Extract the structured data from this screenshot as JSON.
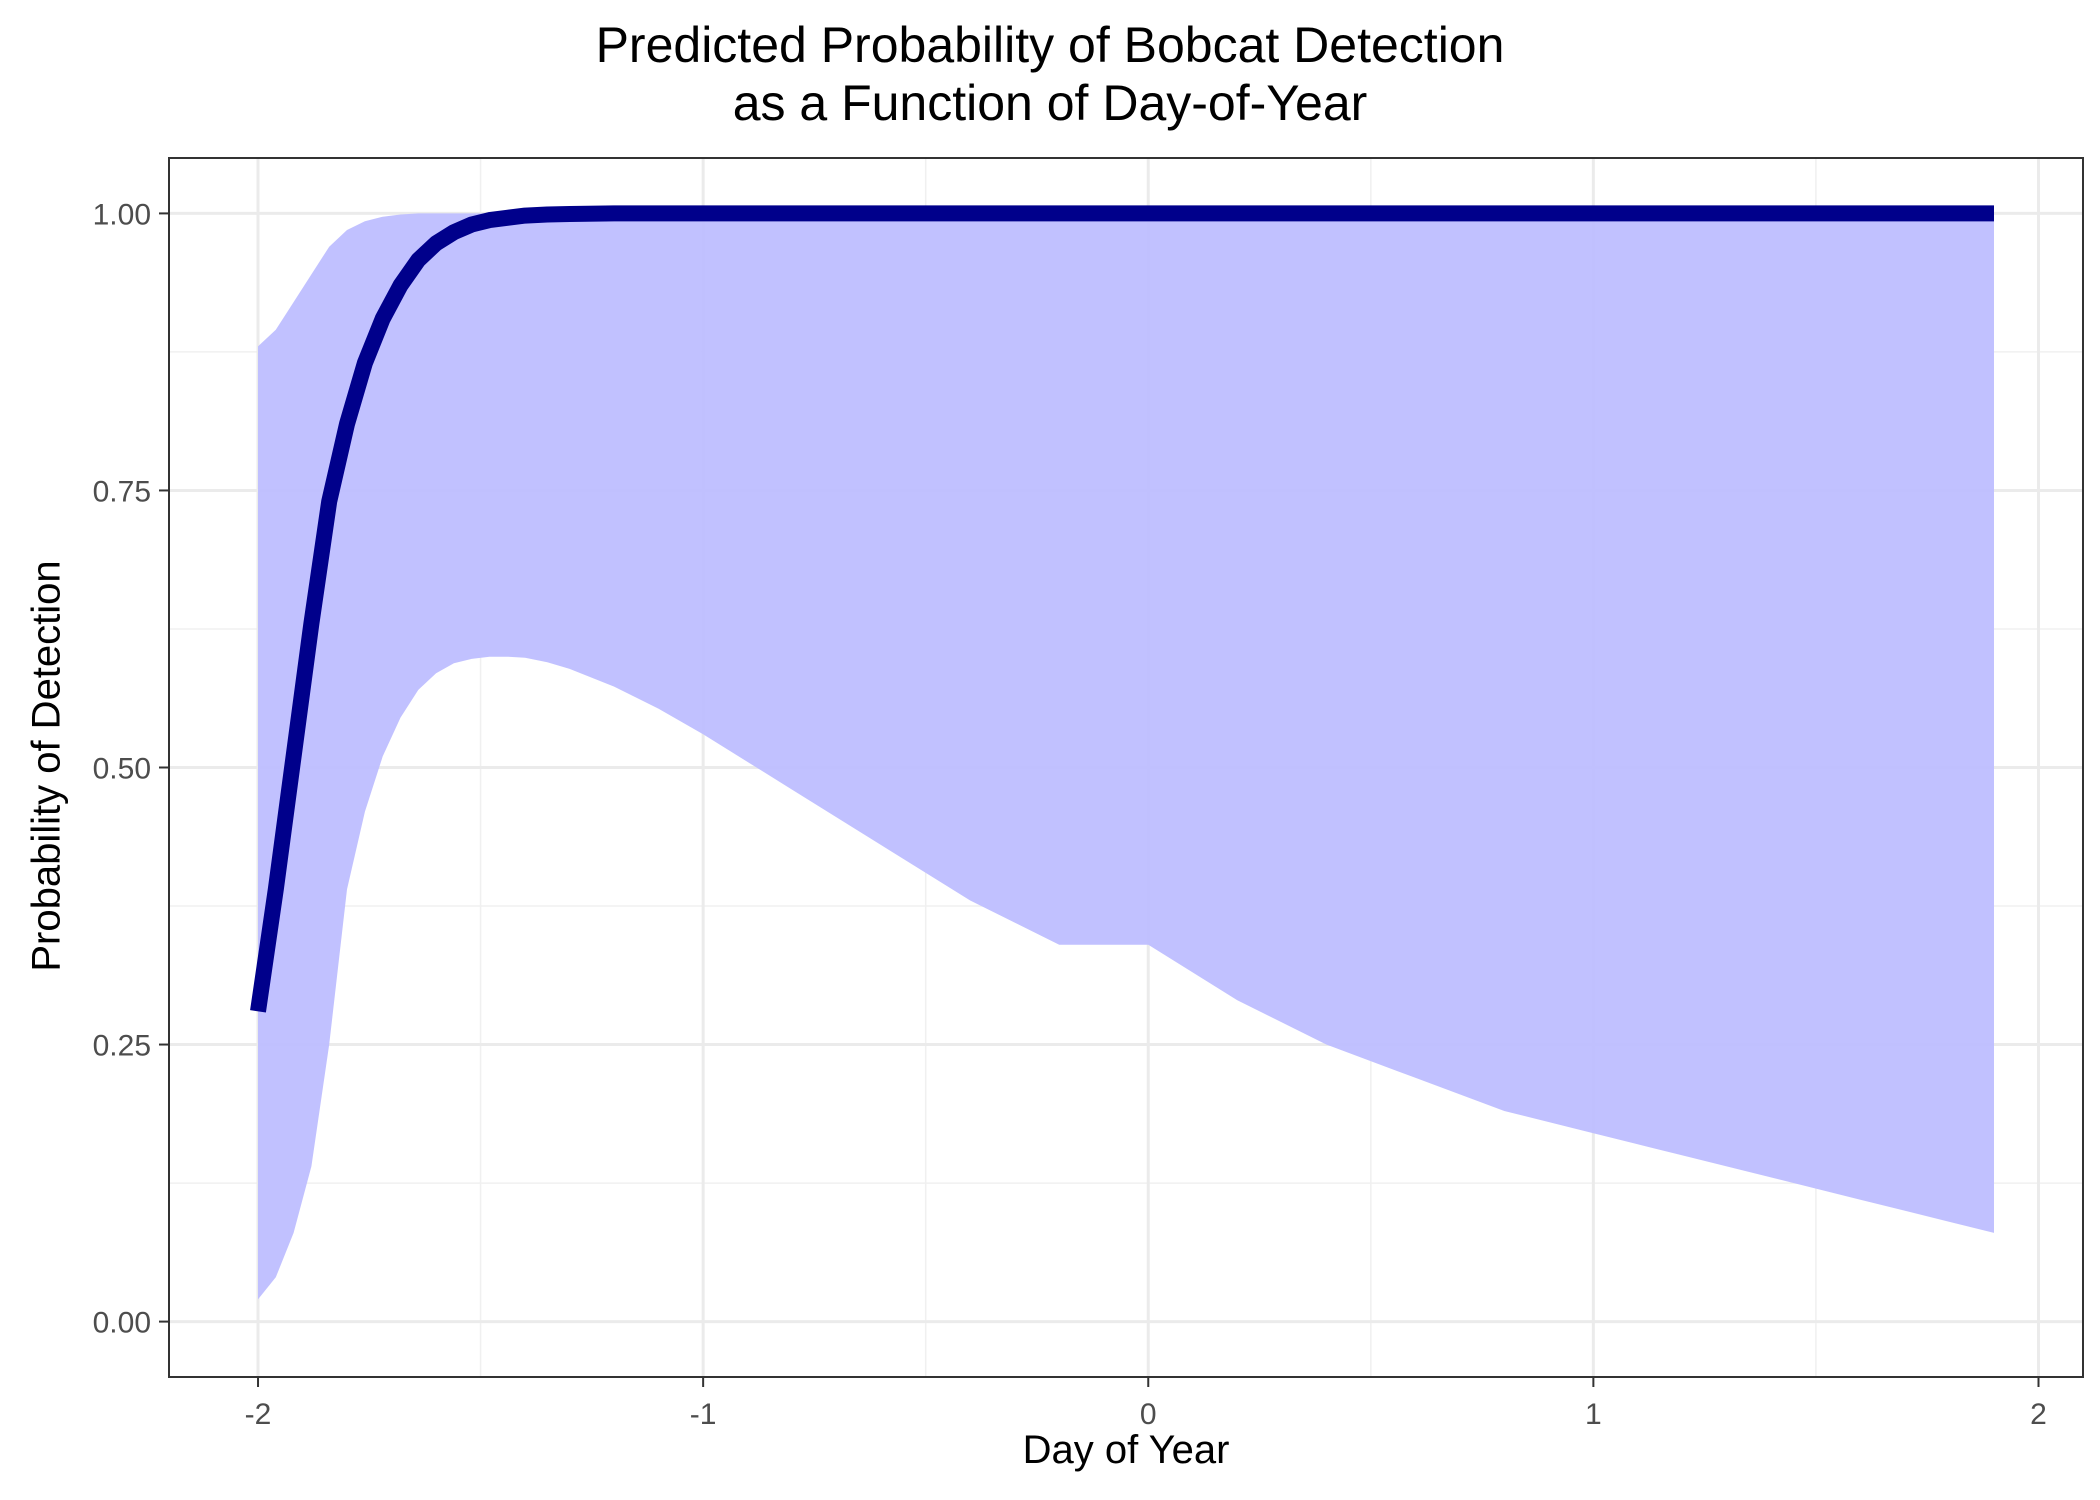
{
  "chart_data": {
    "type": "line",
    "title": "Predicted Probability of Bobcat Detection",
    "subtitle": "as a Function of Day-of-Year",
    "xlabel": "Day of Year",
    "ylabel": "Probability of Detection",
    "xlim": [
      -2.2,
      2.1
    ],
    "ylim": [
      -0.05,
      1.05
    ],
    "x_ticks": [
      -2,
      -1,
      0,
      1,
      2
    ],
    "x_tick_labels": [
      "-2",
      "-1",
      "0",
      "1",
      "2"
    ],
    "y_ticks": [
      0,
      0.25,
      0.5,
      0.75,
      1.0
    ],
    "y_tick_labels": [
      "0.00",
      "0.25",
      "0.50",
      "0.75",
      "1.00"
    ],
    "grid": true,
    "legend": "none",
    "series": [
      {
        "role": "estimate",
        "color": "#00008B",
        "x": [
          -2.0,
          -1.96,
          -1.92,
          -1.88,
          -1.84,
          -1.8,
          -1.76,
          -1.72,
          -1.68,
          -1.64,
          -1.6,
          -1.56,
          -1.52,
          -1.48,
          -1.44,
          -1.4,
          -1.35,
          -1.3,
          -1.2,
          -1.1,
          -1.0,
          0.0,
          1.0,
          1.9
        ],
        "y": [
          0.28,
          0.39,
          0.51,
          0.63,
          0.74,
          0.81,
          0.865,
          0.905,
          0.935,
          0.958,
          0.973,
          0.983,
          0.99,
          0.994,
          0.996,
          0.998,
          0.999,
          0.9995,
          1.0,
          1.0,
          1.0,
          1.0,
          1.0,
          1.0
        ]
      }
    ],
    "ribbon": {
      "role": "confidence interval",
      "color": "#BEBEFF",
      "x": [
        -2.0,
        -1.96,
        -1.92,
        -1.88,
        -1.84,
        -1.8,
        -1.76,
        -1.72,
        -1.68,
        -1.64,
        -1.6,
        -1.56,
        -1.52,
        -1.48,
        -1.44,
        -1.4,
        -1.35,
        -1.3,
        -1.2,
        -1.1,
        -1.0,
        -0.8,
        -0.6,
        -0.4,
        -0.2,
        0.0,
        0.2,
        0.4,
        0.6,
        0.8,
        1.0,
        1.2,
        1.4,
        1.6,
        1.8,
        1.9
      ],
      "upper": [
        0.88,
        0.895,
        0.92,
        0.945,
        0.97,
        0.985,
        0.993,
        0.997,
        0.999,
        1.0,
        1.0,
        1.0,
        1.0,
        1.0,
        1.0,
        1.0,
        1.0,
        1.0,
        1.0,
        1.0,
        1.0,
        1.0,
        1.0,
        1.0,
        1.0,
        1.0,
        1.0,
        1.0,
        1.0,
        1.0,
        1.0,
        1.0,
        1.0,
        1.0,
        1.0,
        1.0
      ],
      "lower": [
        0.02,
        0.04,
        0.08,
        0.14,
        0.25,
        0.39,
        0.46,
        0.51,
        0.545,
        0.57,
        0.585,
        0.594,
        0.598,
        0.6,
        0.6,
        0.599,
        0.595,
        0.589,
        0.573,
        0.553,
        0.53,
        0.48,
        0.43,
        0.38,
        0.34,
        0.34,
        0.29,
        0.25,
        0.22,
        0.19,
        0.17,
        0.15,
        0.13,
        0.11,
        0.09,
        0.08
      ]
    }
  }
}
